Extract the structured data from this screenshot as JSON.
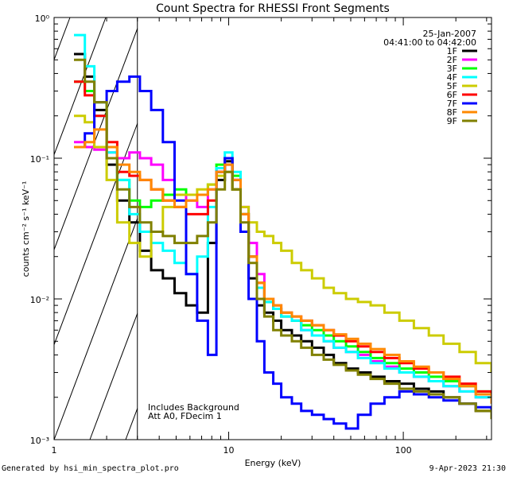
{
  "chart_data": {
    "type": "line",
    "title": "Count Spectra for RHESSI Front Segments",
    "xlabel": "Energy (keV)",
    "ylabel": "counts cm⁻² s⁻¹ keV⁻¹",
    "xscale": "log",
    "yscale": "log",
    "xlim": [
      1,
      320
    ],
    "ylim": [
      0.001,
      1.0
    ],
    "x_ticks": [
      {
        "value": 1,
        "label": "1"
      },
      {
        "value": 10,
        "label": "10"
      },
      {
        "value": 100,
        "label": "100"
      }
    ],
    "y_ticks": [
      {
        "value": 1,
        "label": "10⁰"
      },
      {
        "value": 0.1,
        "label": "10⁻¹"
      },
      {
        "value": 0.01,
        "label": "10⁻²"
      },
      {
        "value": 0.001,
        "label": "10⁻³"
      }
    ],
    "hatched_region": {
      "x_start": 1.0,
      "x_end": 3.0
    },
    "date_label": "25-Jan-2007",
    "time_label": "04:41:00 to 04:42:00",
    "annotations": [
      "Includes Background",
      "Att A0, FDecim 1"
    ],
    "energy_bins": [
      1.3,
      1.5,
      1.7,
      2.0,
      2.3,
      2.7,
      3.1,
      3.6,
      4.2,
      4.9,
      5.7,
      6.6,
      7.6,
      8.5,
      9.5,
      10.5,
      11.7,
      13,
      14.5,
      16,
      18,
      20,
      23,
      26,
      30,
      35,
      40,
      47,
      55,
      65,
      78,
      95,
      115,
      140,
      170,
      210,
      260,
      320
    ],
    "series": [
      {
        "name": "1F",
        "color": "#000000",
        "values": [
          0.55,
          0.38,
          0.22,
          0.09,
          0.05,
          0.035,
          0.022,
          0.016,
          0.014,
          0.011,
          0.009,
          0.008,
          0.025,
          0.07,
          0.095,
          0.06,
          0.03,
          0.014,
          0.009,
          0.008,
          0.007,
          0.006,
          0.0055,
          0.005,
          0.0045,
          0.004,
          0.0035,
          0.0032,
          0.003,
          0.0028,
          0.0026,
          0.0025,
          0.0023,
          0.0022,
          0.002,
          0.0018,
          0.0016,
          0.0014
        ]
      },
      {
        "name": "2F",
        "color": "#ff00ff",
        "values": [
          0.13,
          0.12,
          0.115,
          0.11,
          0.1,
          0.11,
          0.1,
          0.09,
          0.07,
          0.055,
          0.05,
          0.045,
          0.06,
          0.085,
          0.09,
          0.07,
          0.045,
          0.025,
          0.015,
          0.01,
          0.0085,
          0.0075,
          0.007,
          0.006,
          0.0055,
          0.005,
          0.0045,
          0.0042,
          0.004,
          0.0036,
          0.0033,
          0.003,
          0.0028,
          0.0026,
          0.0024,
          0.0022,
          0.002,
          0.0018
        ]
      },
      {
        "name": "3F",
        "color": "#00ff00",
        "values": [
          0.35,
          0.3,
          0.25,
          0.12,
          0.07,
          0.05,
          0.045,
          0.05,
          0.055,
          0.06,
          0.055,
          0.055,
          0.065,
          0.09,
          0.1,
          0.075,
          0.04,
          0.02,
          0.012,
          0.0095,
          0.0085,
          0.0075,
          0.007,
          0.0065,
          0.006,
          0.0055,
          0.005,
          0.0046,
          0.0042,
          0.0038,
          0.0035,
          0.0032,
          0.003,
          0.0028,
          0.0026,
          0.0024,
          0.0022,
          0.002
        ]
      },
      {
        "name": "4F",
        "color": "#00ffff",
        "values": [
          0.75,
          0.45,
          0.2,
          0.11,
          0.07,
          0.04,
          0.03,
          0.025,
          0.022,
          0.018,
          0.015,
          0.02,
          0.045,
          0.085,
          0.11,
          0.08,
          0.04,
          0.02,
          0.012,
          0.0095,
          0.0085,
          0.0075,
          0.007,
          0.006,
          0.0055,
          0.005,
          0.0045,
          0.0042,
          0.0038,
          0.0035,
          0.0032,
          0.003,
          0.0028,
          0.0026,
          0.0024,
          0.0022,
          0.002,
          0.0018
        ]
      },
      {
        "name": "5F",
        "color": "#cccc00",
        "values": [
          0.2,
          0.18,
          0.12,
          0.07,
          0.035,
          0.025,
          0.02,
          0.03,
          0.045,
          0.055,
          0.055,
          0.06,
          0.065,
          0.075,
          0.08,
          0.06,
          0.045,
          0.035,
          0.03,
          0.028,
          0.025,
          0.022,
          0.018,
          0.016,
          0.014,
          0.012,
          0.011,
          0.01,
          0.0095,
          0.009,
          0.008,
          0.007,
          0.0062,
          0.0055,
          0.0048,
          0.0042,
          0.0035,
          0.003
        ]
      },
      {
        "name": "6F",
        "color": "#ff0000",
        "values": [
          0.35,
          0.28,
          0.2,
          0.13,
          0.08,
          0.075,
          0.07,
          0.06,
          0.05,
          0.045,
          0.04,
          0.04,
          0.05,
          0.08,
          0.1,
          0.07,
          0.04,
          0.02,
          0.013,
          0.01,
          0.009,
          0.008,
          0.0075,
          0.007,
          0.0065,
          0.006,
          0.0055,
          0.005,
          0.0046,
          0.0042,
          0.0038,
          0.0035,
          0.0032,
          0.003,
          0.0028,
          0.0025,
          0.0022,
          0.002
        ]
      },
      {
        "name": "7F",
        "color": "#0000ff",
        "values": [
          0.12,
          0.15,
          0.25,
          0.3,
          0.35,
          0.38,
          0.3,
          0.22,
          0.13,
          0.05,
          0.015,
          0.007,
          0.004,
          0.08,
          0.1,
          0.07,
          0.03,
          0.01,
          0.005,
          0.003,
          0.0025,
          0.002,
          0.0018,
          0.0016,
          0.0015,
          0.0014,
          0.0013,
          0.0012,
          0.0015,
          0.0018,
          0.002,
          0.0022,
          0.0021,
          0.002,
          0.0019,
          0.0018,
          0.0017,
          0.0016
        ]
      },
      {
        "name": "8F",
        "color": "#ff8800",
        "values": [
          0.12,
          0.13,
          0.16,
          0.12,
          0.09,
          0.08,
          0.07,
          0.06,
          0.05,
          0.045,
          0.05,
          0.055,
          0.06,
          0.08,
          0.09,
          0.07,
          0.04,
          0.02,
          0.013,
          0.01,
          0.009,
          0.008,
          0.0075,
          0.007,
          0.0065,
          0.006,
          0.0056,
          0.0052,
          0.0048,
          0.0044,
          0.004,
          0.0036,
          0.0033,
          0.003,
          0.0027,
          0.0024,
          0.0021,
          0.0018
        ]
      },
      {
        "name": "9F",
        "color": "#808000",
        "values": [
          0.5,
          0.35,
          0.25,
          0.1,
          0.06,
          0.045,
          0.035,
          0.03,
          0.028,
          0.025,
          0.025,
          0.028,
          0.035,
          0.06,
          0.08,
          0.06,
          0.035,
          0.018,
          0.01,
          0.0075,
          0.006,
          0.0055,
          0.005,
          0.0045,
          0.004,
          0.0037,
          0.0034,
          0.0031,
          0.0029,
          0.0027,
          0.0025,
          0.0023,
          0.0022,
          0.0021,
          0.002,
          0.0018,
          0.0016,
          0.0014
        ]
      }
    ]
  },
  "footer": {
    "generated_by": "Generated by hsi_min_spectra_plot.pro",
    "timestamp": "9-Apr-2023 21:30"
  }
}
